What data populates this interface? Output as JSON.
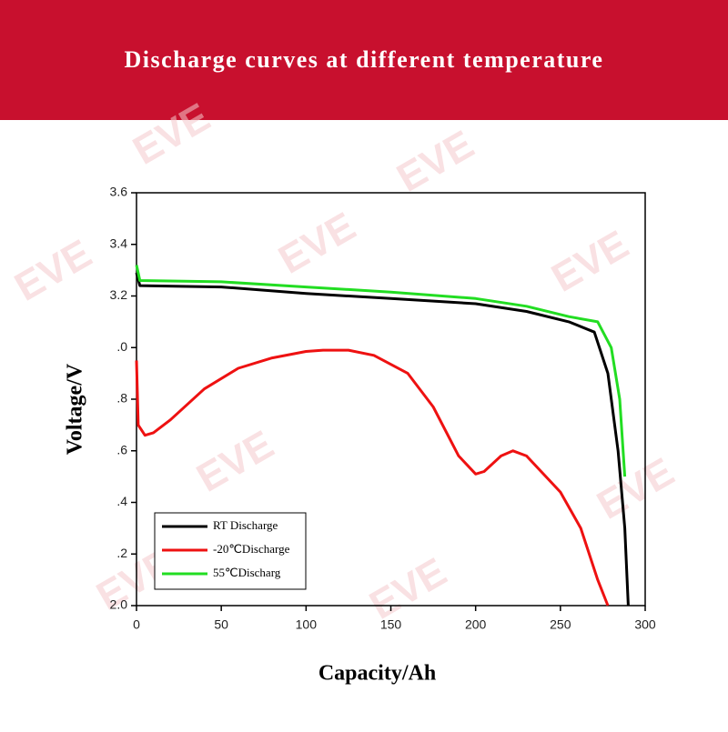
{
  "chart_data": {
    "type": "line",
    "title": "Discharge curves at different temperature",
    "watermark": "EVE",
    "xlabel": "Capacity/Ah",
    "ylabel": "Voltage/V",
    "xlim": [
      0,
      300
    ],
    "xticks": [
      0,
      50,
      100,
      150,
      200,
      250,
      300
    ],
    "ylim": [
      2.0,
      3.6
    ],
    "yticks": [
      {
        "value": 2.0,
        "label": "2.0"
      },
      {
        "value": 2.2,
        "label": ".2"
      },
      {
        "value": 2.4,
        "label": ".4"
      },
      {
        "value": 2.6,
        "label": ".6"
      },
      {
        "value": 2.8,
        "label": ".8"
      },
      {
        "value": 3.0,
        "label": ".0"
      },
      3.2,
      3.4,
      3.6
    ],
    "legend": "lower left",
    "series": [
      {
        "name": "RT Discharge",
        "color": "#000000",
        "x": [
          0,
          2,
          50,
          100,
          150,
          200,
          230,
          255,
          270,
          278,
          284,
          288,
          290
        ],
        "values": [
          3.29,
          3.24,
          3.235,
          3.21,
          3.19,
          3.17,
          3.14,
          3.1,
          3.06,
          2.9,
          2.6,
          2.3,
          2.0
        ]
      },
      {
        "name": "-20℃Discharge",
        "color": "#ee1111",
        "x": [
          0,
          1,
          5,
          10,
          20,
          40,
          60,
          80,
          100,
          110,
          125,
          140,
          160,
          175,
          190,
          200,
          205,
          215,
          222,
          230,
          250,
          262,
          272,
          278
        ],
        "values": [
          2.95,
          2.7,
          2.66,
          2.67,
          2.72,
          2.84,
          2.92,
          2.96,
          2.985,
          2.99,
          2.99,
          2.97,
          2.9,
          2.77,
          2.58,
          2.51,
          2.52,
          2.58,
          2.6,
          2.58,
          2.44,
          2.3,
          2.1,
          2.0
        ]
      },
      {
        "name": "55℃Discharg",
        "color": "#22dd22",
        "x": [
          0,
          2,
          50,
          100,
          150,
          200,
          230,
          255,
          272,
          280,
          285,
          288
        ],
        "values": [
          3.32,
          3.26,
          3.255,
          3.235,
          3.215,
          3.19,
          3.16,
          3.12,
          3.1,
          3.0,
          2.8,
          2.5
        ]
      }
    ]
  }
}
